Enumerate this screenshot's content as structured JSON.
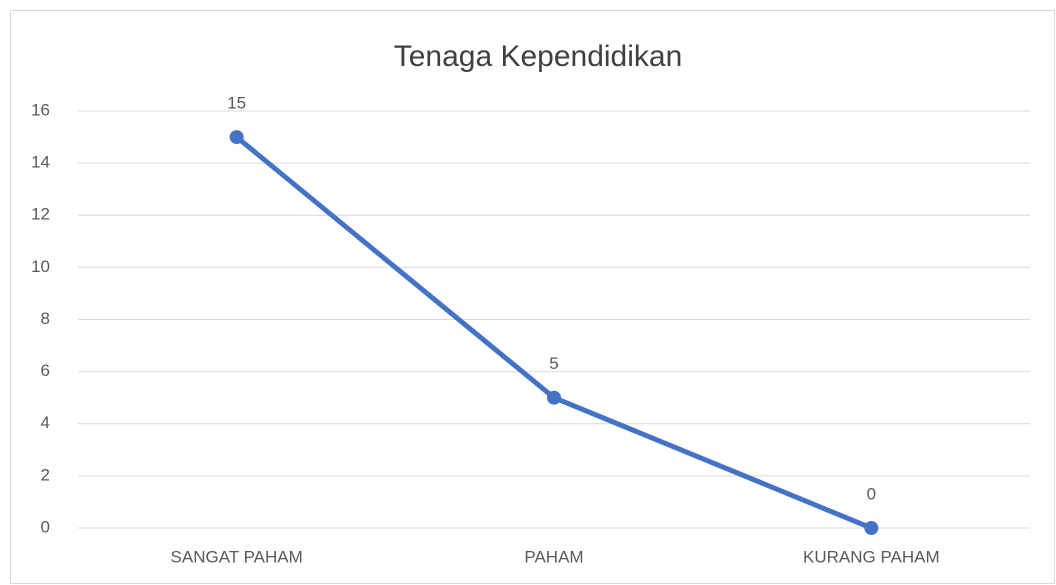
{
  "chart_data": {
    "type": "line",
    "title": "Tenaga Kependidikan",
    "categories": [
      "SANGAT PAHAM",
      "PAHAM",
      "KURANG PAHAM"
    ],
    "values": [
      15,
      5,
      0
    ],
    "color": "#4472c4",
    "ylim": [
      0,
      16
    ],
    "yticks": [
      0,
      2,
      4,
      6,
      8,
      10,
      12,
      14,
      16
    ],
    "grid": true
  }
}
